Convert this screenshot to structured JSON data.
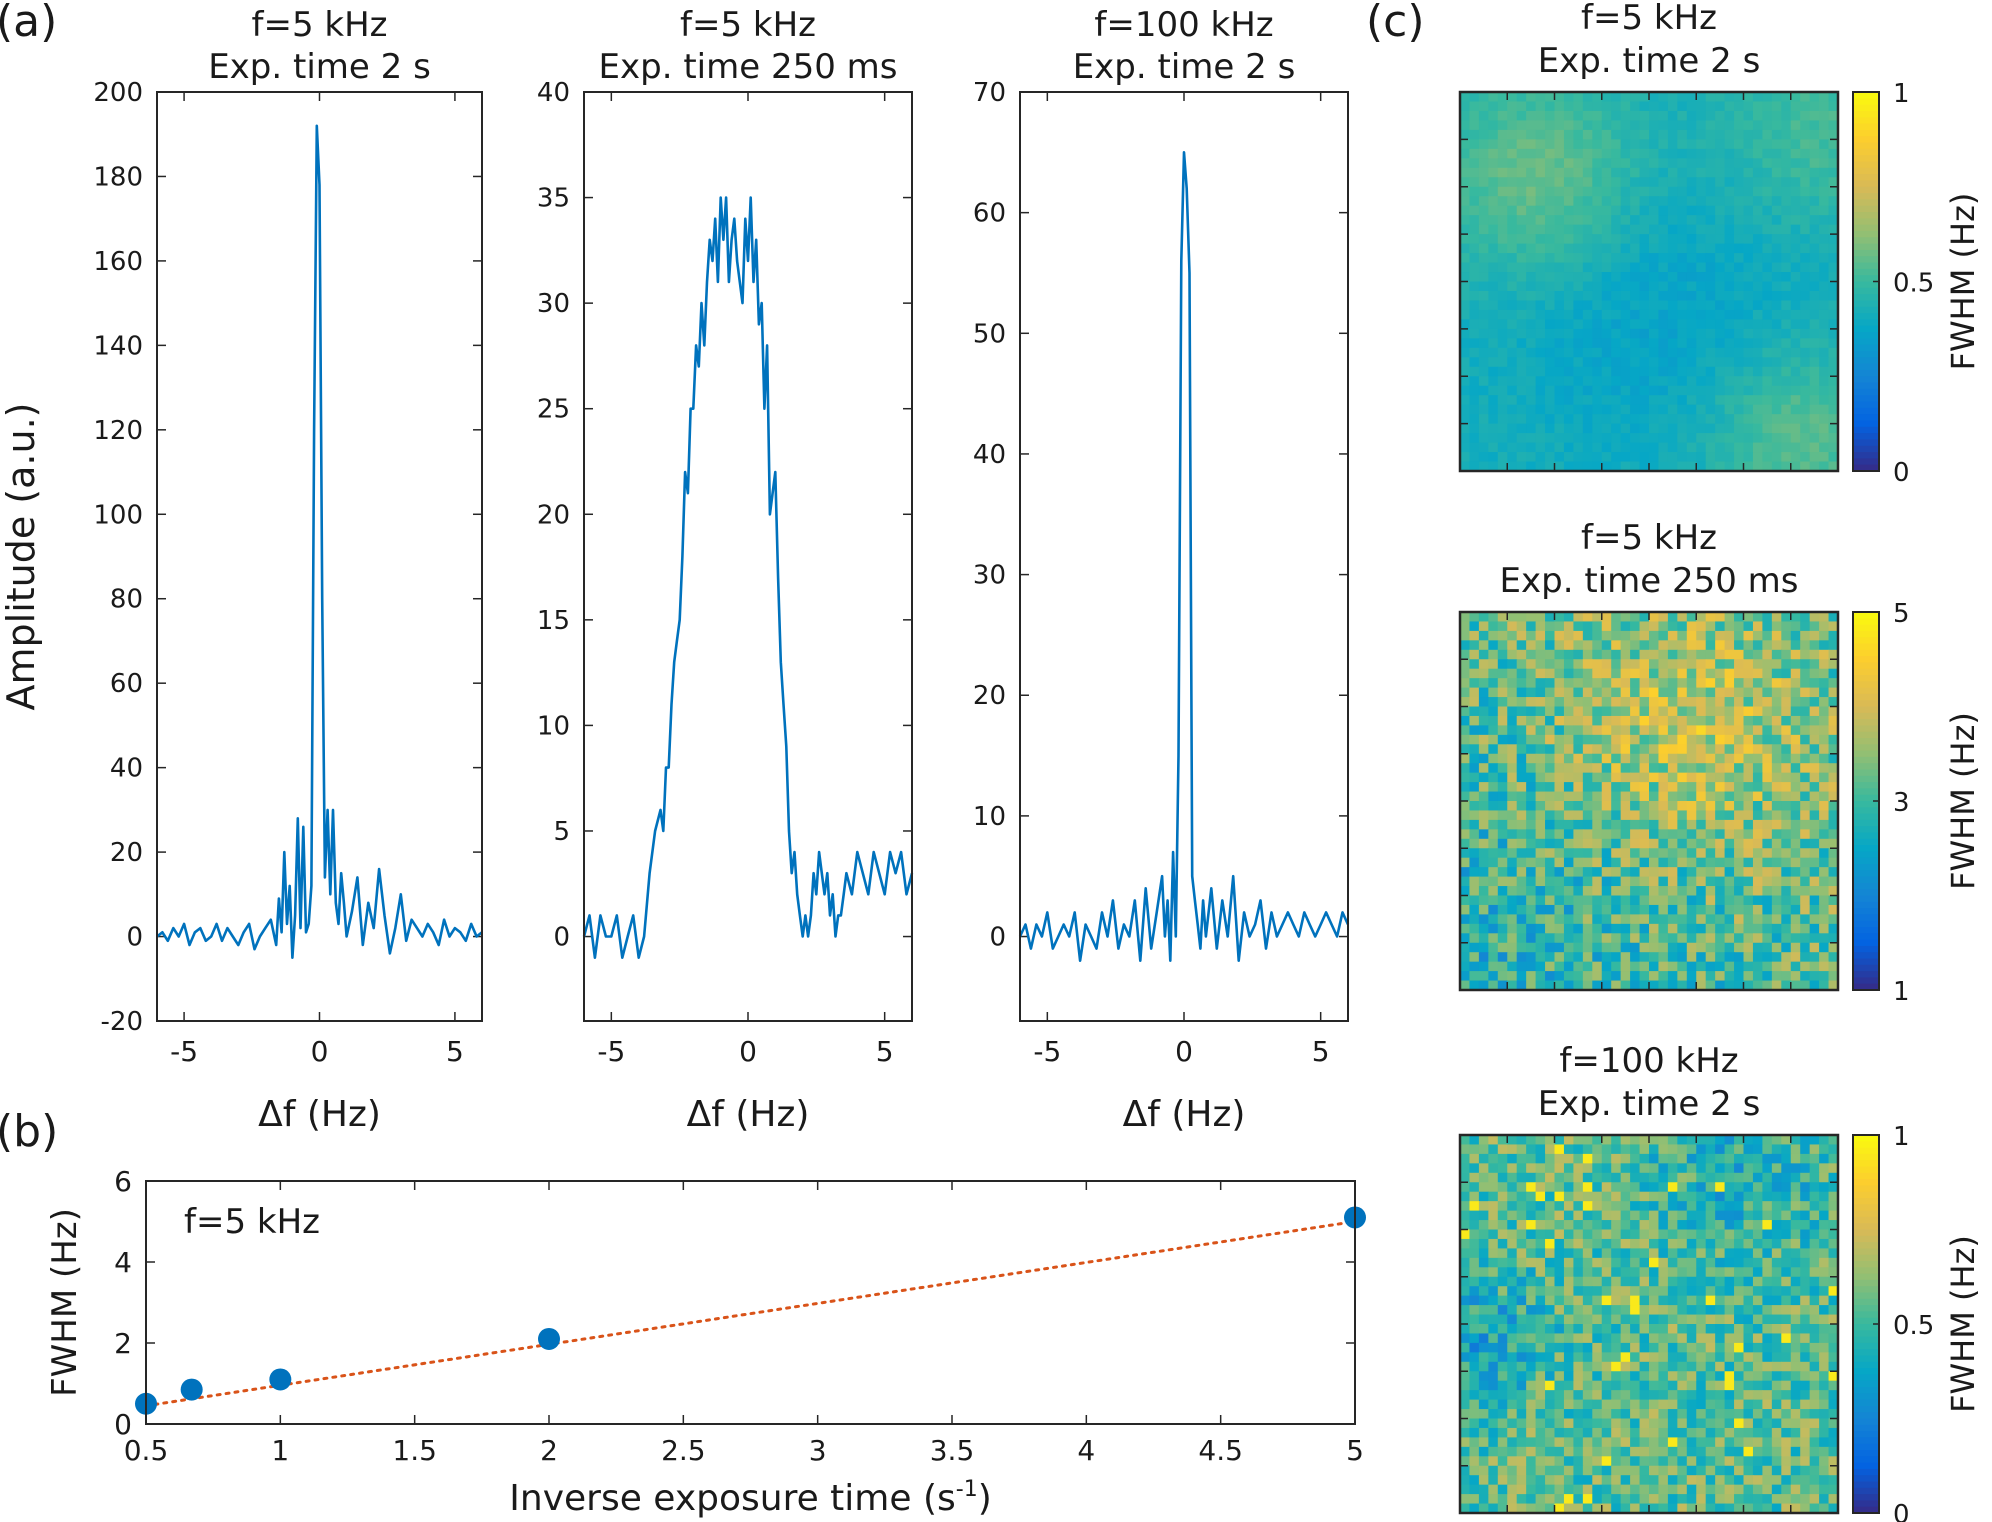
{
  "panel_labels": {
    "a": "(a)",
    "b": "(b)",
    "c": "(c)"
  },
  "colors": {
    "line": "#0072BD",
    "fit": "#D95319",
    "axis": "#262626",
    "parula": [
      "#352A87",
      "#0363E1",
      "#1485D4",
      "#06A7C6",
      "#38B99E",
      "#92BF73",
      "#D9BA56",
      "#FCCE2E",
      "#F9FB0E"
    ]
  },
  "chart_data": [
    {
      "id": "a1",
      "type": "line",
      "title": "f=5 kHz",
      "subtitle": "Exp. time 2 s",
      "xlabel": "Δf (Hz)",
      "ylabel": "Amplitude (a.u.)",
      "xlim": [
        -6,
        6
      ],
      "ylim": [
        -20,
        200
      ],
      "xticks": [
        -5,
        0,
        5
      ],
      "xtick_labels": [
        "-5",
        "0",
        "5"
      ],
      "yticks": [
        -20,
        0,
        20,
        40,
        60,
        80,
        100,
        120,
        140,
        160,
        180,
        200
      ],
      "ytick_labels": [
        "-20",
        "0",
        "20",
        "40",
        "60",
        "80",
        "100",
        "120",
        "140",
        "160",
        "180",
        "200"
      ],
      "series": [
        {
          "x": [
            -6.0,
            -5.8,
            -5.6,
            -5.4,
            -5.2,
            -5.0,
            -4.8,
            -4.6,
            -4.4,
            -4.2,
            -4.0,
            -3.8,
            -3.6,
            -3.4,
            -3.2,
            -3.0,
            -2.8,
            -2.6,
            -2.4,
            -2.2,
            -2.0,
            -1.8,
            -1.6,
            -1.5,
            -1.4,
            -1.3,
            -1.2,
            -1.1,
            -1.0,
            -0.9,
            -0.8,
            -0.7,
            -0.6,
            -0.5,
            -0.4,
            -0.3,
            -0.2,
            -0.1,
            0.0,
            0.1,
            0.2,
            0.3,
            0.4,
            0.5,
            0.6,
            0.7,
            0.8,
            0.9,
            1.0,
            1.2,
            1.4,
            1.6,
            1.8,
            2.0,
            2.2,
            2.4,
            2.6,
            2.8,
            3.0,
            3.2,
            3.4,
            3.6,
            3.8,
            4.0,
            4.2,
            4.4,
            4.6,
            4.8,
            5.0,
            5.2,
            5.4,
            5.6,
            5.8,
            6.0
          ],
          "y": [
            0,
            1,
            -1,
            2,
            0,
            3,
            -2,
            1,
            2,
            -1,
            0,
            3,
            -1,
            2,
            0,
            -2,
            1,
            3,
            -3,
            0,
            2,
            4,
            -2,
            9,
            1,
            20,
            3,
            12,
            -5,
            5,
            28,
            2,
            26,
            1,
            3,
            12,
            120,
            192,
            178,
            80,
            14,
            30,
            10,
            30,
            8,
            3,
            15,
            8,
            0,
            6,
            14,
            -2,
            8,
            2,
            16,
            5,
            -4,
            2,
            10,
            -1,
            4,
            2,
            0,
            3,
            1,
            -2,
            4,
            0,
            2,
            1,
            -1,
            3,
            0,
            1
          ]
        }
      ]
    },
    {
      "id": "a2",
      "type": "line",
      "title": "f=5 kHz",
      "subtitle": "Exp. time 250 ms",
      "xlabel": "Δf (Hz)",
      "ylabel": "",
      "xlim": [
        -6,
        6
      ],
      "ylim": [
        -4,
        40
      ],
      "xticks": [
        -5,
        0,
        5
      ],
      "xtick_labels": [
        "-5",
        "0",
        "5"
      ],
      "yticks": [
        0,
        5,
        10,
        15,
        20,
        25,
        30,
        35,
        40
      ],
      "ytick_labels": [
        "0",
        "5",
        "10",
        "15",
        "20",
        "25",
        "30",
        "35",
        "40"
      ],
      "series": [
        {
          "x": [
            -6.0,
            -5.8,
            -5.6,
            -5.4,
            -5.2,
            -5.0,
            -4.8,
            -4.6,
            -4.4,
            -4.2,
            -4.0,
            -3.8,
            -3.6,
            -3.4,
            -3.2,
            -3.1,
            -3.0,
            -2.9,
            -2.8,
            -2.7,
            -2.6,
            -2.5,
            -2.4,
            -2.3,
            -2.2,
            -2.1,
            -2.0,
            -1.9,
            -1.8,
            -1.7,
            -1.6,
            -1.5,
            -1.4,
            -1.3,
            -1.2,
            -1.1,
            -1.0,
            -0.9,
            -0.8,
            -0.7,
            -0.6,
            -0.5,
            -0.4,
            -0.3,
            -0.2,
            -0.1,
            0.0,
            0.1,
            0.2,
            0.3,
            0.4,
            0.5,
            0.6,
            0.7,
            0.8,
            0.9,
            1.0,
            1.1,
            1.2,
            1.3,
            1.4,
            1.5,
            1.6,
            1.7,
            1.8,
            1.9,
            2.0,
            2.1,
            2.2,
            2.3,
            2.4,
            2.5,
            2.6,
            2.7,
            2.8,
            2.9,
            3.0,
            3.1,
            3.2,
            3.3,
            3.4,
            3.5,
            3.6,
            3.8,
            4.0,
            4.2,
            4.4,
            4.6,
            4.8,
            5.0,
            5.2,
            5.4,
            5.6,
            5.8,
            6.0
          ],
          "y": [
            0,
            1,
            -1,
            1,
            0,
            0,
            1,
            -1,
            0,
            1,
            -1,
            0,
            3,
            5,
            6,
            5,
            8,
            8,
            11,
            13,
            14,
            15,
            18,
            22,
            21,
            25,
            25,
            28,
            27,
            30,
            28,
            31,
            33,
            32,
            34,
            31,
            35,
            33,
            35,
            31,
            33,
            34,
            32,
            31,
            30,
            34,
            32,
            35,
            31,
            33,
            29,
            30,
            25,
            28,
            20,
            21,
            22,
            17,
            13,
            11,
            9,
            5,
            3,
            4,
            2,
            1,
            0,
            1,
            0,
            1,
            3,
            2,
            4,
            3,
            2,
            3,
            1,
            2,
            0,
            1,
            1,
            2,
            3,
            2,
            4,
            3,
            2,
            4,
            3,
            2,
            4,
            3,
            4,
            2,
            3
          ]
        }
      ]
    },
    {
      "id": "a3",
      "type": "line",
      "title": "f=100 kHz",
      "subtitle": "Exp. time 2 s",
      "xlabel": "Δf (Hz)",
      "ylabel": "",
      "xlim": [
        -6,
        6
      ],
      "ylim": [
        -7,
        70
      ],
      "xticks": [
        -5,
        0,
        5
      ],
      "xtick_labels": [
        "-5",
        "0",
        "5"
      ],
      "yticks": [
        0,
        10,
        20,
        30,
        40,
        50,
        60,
        70
      ],
      "ytick_labels": [
        "0",
        "10",
        "20",
        "30",
        "40",
        "50",
        "60",
        "70"
      ],
      "series": [
        {
          "x": [
            -6.0,
            -5.8,
            -5.6,
            -5.4,
            -5.2,
            -5.0,
            -4.8,
            -4.6,
            -4.4,
            -4.2,
            -4.0,
            -3.8,
            -3.6,
            -3.4,
            -3.2,
            -3.0,
            -2.8,
            -2.6,
            -2.4,
            -2.2,
            -2.0,
            -1.8,
            -1.6,
            -1.4,
            -1.2,
            -1.0,
            -0.8,
            -0.7,
            -0.6,
            -0.5,
            -0.4,
            -0.3,
            -0.2,
            -0.1,
            0.0,
            0.1,
            0.2,
            0.3,
            0.4,
            0.5,
            0.6,
            0.7,
            0.8,
            1.0,
            1.2,
            1.4,
            1.6,
            1.8,
            2.0,
            2.2,
            2.4,
            2.6,
            2.8,
            3.0,
            3.2,
            3.4,
            3.6,
            3.8,
            4.0,
            4.2,
            4.4,
            4.6,
            4.8,
            5.0,
            5.2,
            5.4,
            5.6,
            5.8,
            6.0
          ],
          "y": [
            0,
            1,
            -1,
            1,
            0,
            2,
            -1,
            0,
            1,
            0,
            2,
            -2,
            1,
            0,
            -1,
            2,
            0,
            3,
            -1,
            1,
            0,
            3,
            -2,
            4,
            -1,
            2,
            5,
            0,
            3,
            -2,
            7,
            0,
            15,
            56,
            65,
            62,
            55,
            5,
            3,
            1,
            -1,
            3,
            0,
            4,
            -1,
            3,
            0,
            5,
            -2,
            2,
            0,
            1,
            3,
            -1,
            2,
            0,
            1,
            2,
            1,
            0,
            2,
            1,
            0,
            1,
            2,
            1,
            0,
            2,
            1
          ]
        }
      ]
    },
    {
      "id": "b",
      "type": "scatter",
      "annotation": "f=5 kHz",
      "xlabel": "Inverse exposure time (s",
      "xlabel_sup": "-1",
      "xlabel_end": ")",
      "ylabel": "FWHM (Hz)",
      "xlim": [
        0.5,
        5
      ],
      "ylim": [
        0,
        6
      ],
      "xticks": [
        0.5,
        1,
        1.5,
        2,
        2.5,
        3,
        3.5,
        4,
        4.5,
        5
      ],
      "xtick_labels": [
        "0.5",
        "1",
        "1.5",
        "2",
        "2.5",
        "3",
        "3.5",
        "4",
        "4.5",
        "5"
      ],
      "yticks": [
        0,
        2,
        4,
        6
      ],
      "ytick_labels": [
        "0",
        "2",
        "4",
        "6"
      ],
      "points": {
        "x": [
          0.5,
          0.67,
          1,
          2,
          5
        ],
        "y": [
          0.5,
          0.85,
          1.1,
          2.1,
          5.1
        ]
      },
      "fit": {
        "x": [
          0.5,
          5
        ],
        "y": [
          0.45,
          5.0
        ]
      }
    },
    {
      "id": "c1",
      "type": "heatmap",
      "title": "f=5 kHz",
      "subtitle": "Exp. time 2 s",
      "colorbar_label": "FWHM (Hz)",
      "clim": [
        0,
        1
      ],
      "colorbar_ticks": [
        0,
        0.5,
        1
      ],
      "colorbar_tick_labels": [
        "0",
        "0.5",
        "1"
      ],
      "grid": [
        40,
        40
      ]
    },
    {
      "id": "c2",
      "type": "heatmap",
      "title": "f=5 kHz",
      "subtitle": "Exp. time 250 ms",
      "colorbar_label": "FWHM (Hz)",
      "clim": [
        1,
        5
      ],
      "colorbar_ticks": [
        1,
        3,
        5
      ],
      "colorbar_tick_labels": [
        "1",
        "3",
        "5"
      ],
      "grid": [
        40,
        40
      ]
    },
    {
      "id": "c3",
      "type": "heatmap",
      "title": "f=100 kHz",
      "subtitle": "Exp. time 2 s",
      "colorbar_label": "FWHM (Hz)",
      "clim": [
        0,
        1
      ],
      "colorbar_ticks": [
        0,
        0.5,
        1
      ],
      "colorbar_tick_labels": [
        "0",
        "0.5",
        "1"
      ],
      "grid": [
        40,
        40
      ]
    }
  ]
}
